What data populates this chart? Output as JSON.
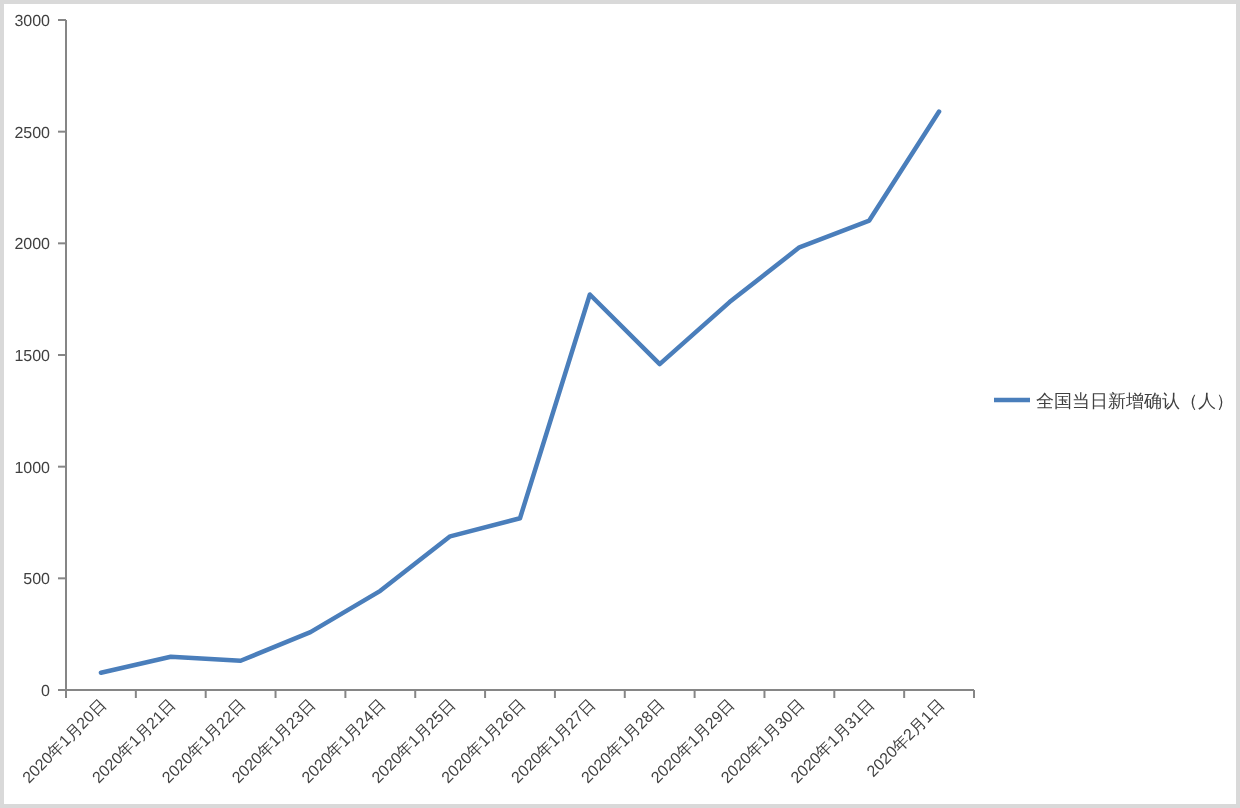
{
  "chart_data": {
    "type": "line",
    "categories": [
      "2020年1月20日",
      "2020年1月21日",
      "2020年1月22日",
      "2020年1月23日",
      "2020年1月24日",
      "2020年1月25日",
      "2020年1月26日",
      "2020年1月27日",
      "2020年1月28日",
      "2020年1月29日",
      "2020年1月30日",
      "2020年1月31日",
      "2020年2月1日"
    ],
    "series": [
      {
        "name": "全国当日新增确认（人）",
        "color": "#4a7ebb",
        "values": [
          77,
          149,
          131,
          259,
          444,
          688,
          769,
          1771,
          1459,
          1737,
          1982,
          2102,
          2590
        ]
      }
    ],
    "ylim": [
      0,
      3000
    ],
    "yticks": [
      0,
      500,
      1000,
      1500,
      2000,
      2500,
      3000
    ],
    "grid": false,
    "legend": "right",
    "marker": "none",
    "line_style": "solid"
  }
}
